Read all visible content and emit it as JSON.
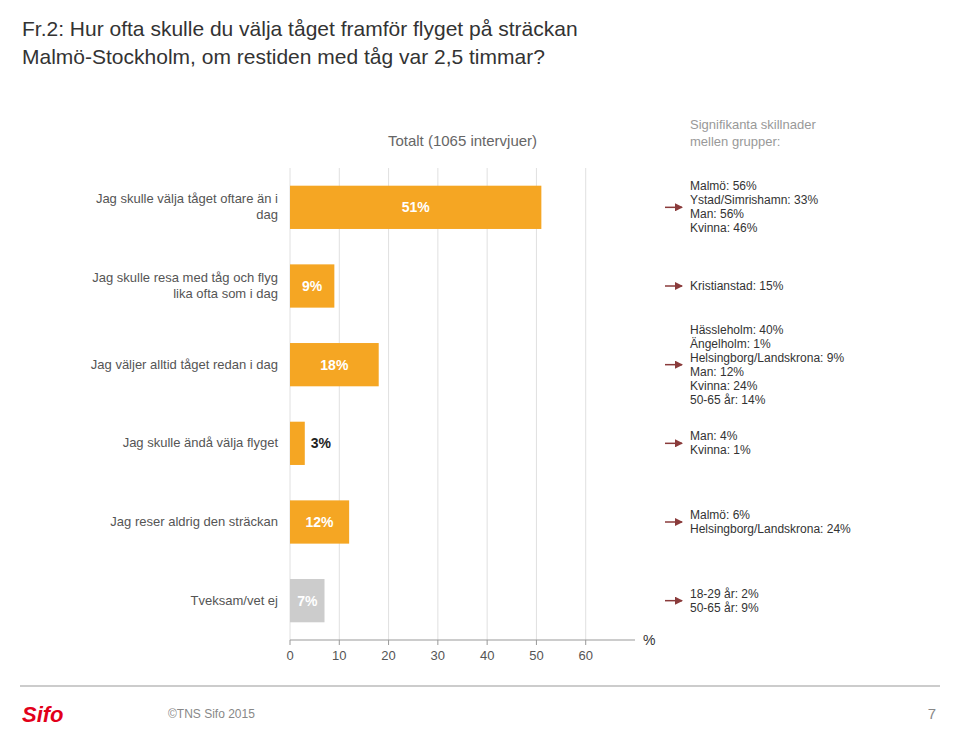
{
  "chart_data": {
    "type": "bar",
    "orientation": "horizontal",
    "title": [
      "Fr.2: Hur ofta skulle du välja tåget framför flyget på sträckan",
      "Malmö-Stockholm, om restiden med tåg var 2,5 timmar?"
    ],
    "subtitle": "Totalt (1065 intervjuer)",
    "categories": [
      "Jag skulle välja tåget oftare än i\ndag",
      "Jag skulle resa med tåg och flyg\nlika ofta som i dag",
      "Jag väljer alltid tåget redan i dag",
      "Jag skulle ändå välja flyget",
      "Jag reser aldrig den sträckan",
      "Tveksam/vet ej"
    ],
    "values": [
      51,
      9,
      18,
      3,
      12,
      7
    ],
    "value_labels": [
      "51%",
      "9%",
      "18%",
      "3%",
      "12%",
      "7%"
    ],
    "data_labels": true,
    "colors": [
      "#F5A623",
      "#F5A623",
      "#F5A623",
      "#F5A623",
      "#F5A623",
      "#CCCCCC"
    ],
    "xlim": [
      0,
      70
    ],
    "xticks": [
      0,
      10,
      20,
      30,
      40,
      50,
      60
    ],
    "xlabel": "%",
    "grid": true,
    "annotation_title": "Signifikanta skillnader\nmellen grupper:",
    "annotations": [
      "Malmö: 56%\nYstad/Simrishamn: 33%\nMan: 56%\nKvinna: 46%",
      "Kristianstad: 15%",
      "Hässleholm: 40%\nÄngelholm: 1%\nHelsingborg/Landskrona: 9%\nMan: 12%\nKvinna: 24%\n50-65 år: 14%",
      "Man: 4%\nKvinna: 1%",
      "Malmö: 6%\nHelsingborg/Landskrona: 24%",
      "18-29 år: 2%\n50-65 år: 9%"
    ],
    "logo": "Sifo",
    "footer": "©TNS Sifo 2015",
    "page_number": "7"
  }
}
